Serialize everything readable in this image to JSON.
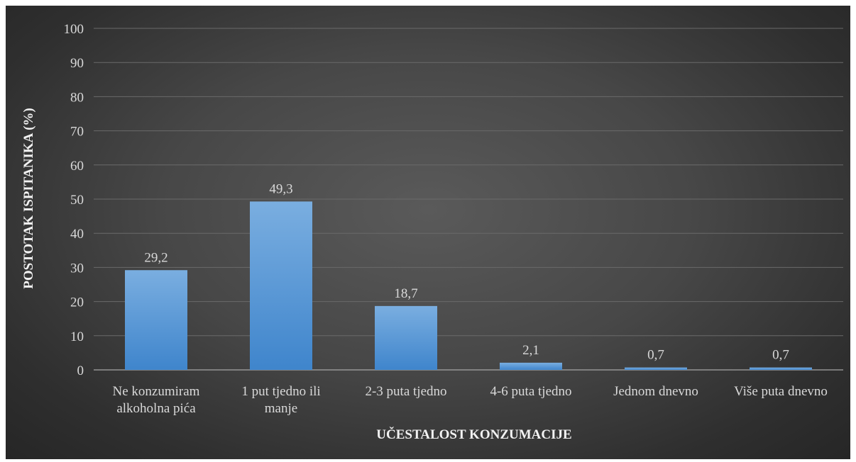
{
  "chart_data": {
    "type": "bar",
    "title": "",
    "xlabel": "UČESTALOST KONZUMACIJE",
    "ylabel": "POSTOTAK ISPITANIKA (%)",
    "ylim": [
      0,
      100
    ],
    "yticks": [
      "0",
      "10",
      "20",
      "30",
      "40",
      "50",
      "60",
      "70",
      "80",
      "90",
      "100"
    ],
    "categories": [
      [
        "Ne konzumiram",
        "alkoholna pića"
      ],
      [
        "1 put tjedno ili",
        "manje"
      ],
      [
        "2-3 puta tjedno"
      ],
      [
        "4-6 puta tjedno"
      ],
      [
        "Jednom dnevno"
      ],
      [
        "Više puta dnevno"
      ]
    ],
    "values": [
      29.2,
      49.3,
      18.7,
      2.1,
      0.7,
      0.7
    ],
    "value_labels": [
      "29,2",
      "49,3",
      "18,7",
      "2,1",
      "0,7",
      "0,7"
    ],
    "grid": true,
    "bar_color": "#5b9bd5"
  }
}
